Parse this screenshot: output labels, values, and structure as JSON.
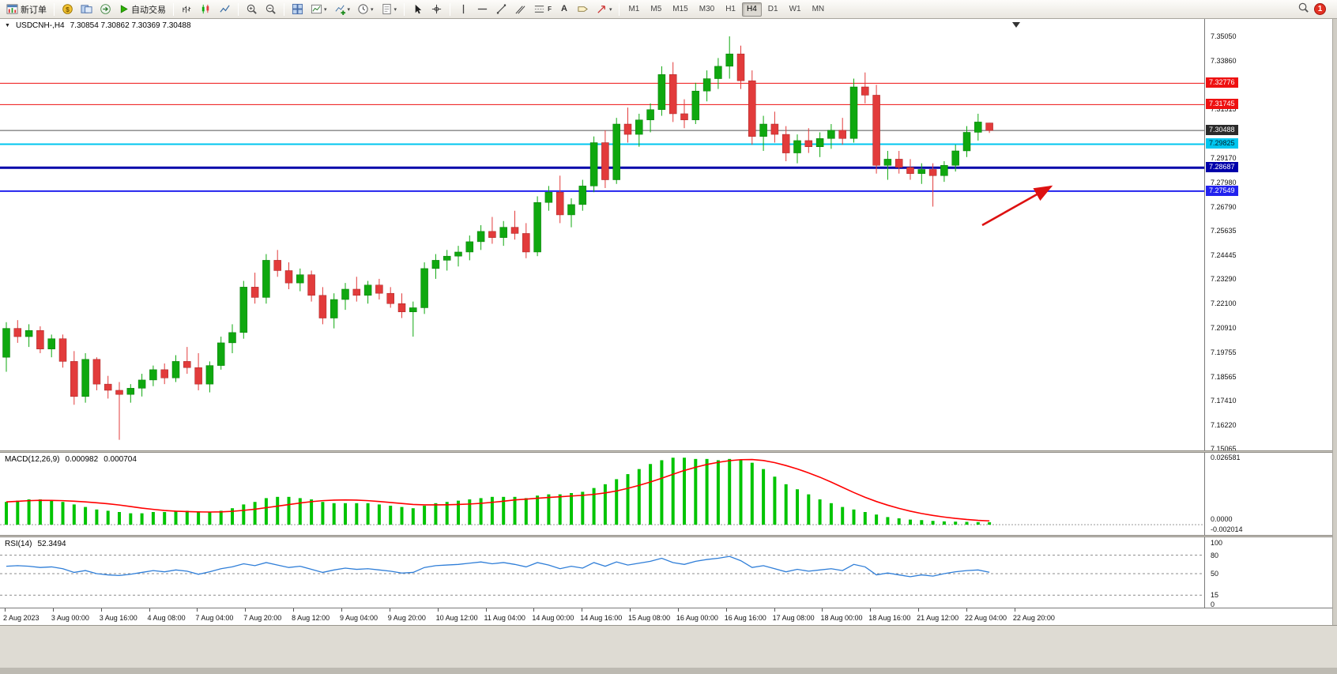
{
  "toolbar": {
    "new_order_label": "新订单",
    "auto_trading_label": "自动交易",
    "timeframes": [
      "M1",
      "M5",
      "M15",
      "M30",
      "H1",
      "H4",
      "D1",
      "W1",
      "MN"
    ],
    "active_timeframe": "H4",
    "notification_count": "1",
    "dropdown_glyph": "▾",
    "text_tool_glyph": "A",
    "fibo_glyph": "F"
  },
  "chart_header": {
    "menu_glyph": "▼",
    "symbol": "USDCNH-,H4",
    "ohlc": "7.30854 7.30862 7.30369 7.30488"
  },
  "macd_panel": {
    "label": "MACD(12,26,9)",
    "value_main": "0.000982",
    "value_signal": "0.000704",
    "axis": [
      "0.026581",
      "0.0000",
      "-0.002014"
    ]
  },
  "rsi_panel": {
    "label": "RSI(14)",
    "value": "52.3494",
    "axis": [
      "100",
      "80",
      "50",
      "15",
      "0"
    ]
  },
  "price_axis": {
    "ticks": [
      "7.35050",
      "7.33860",
      "7.31515",
      "7.29170",
      "7.27980",
      "7.26790",
      "7.25635",
      "7.24445",
      "7.23290",
      "7.22100",
      "7.20910",
      "7.19755",
      "7.18565",
      "7.17410",
      "7.16220",
      "7.15065"
    ],
    "badges": [
      {
        "text": "7.32776",
        "bg": "#ee1111",
        "fg": "#ffffff"
      },
      {
        "text": "7.31745",
        "bg": "#ee1111",
        "fg": "#ffffff"
      },
      {
        "text": "7.30488",
        "bg": "#2b2b2b",
        "fg": "#ffffff"
      },
      {
        "text": "7.29825",
        "bg": "#00c6ef",
        "fg": "#00222e"
      },
      {
        "text": "7.28687",
        "bg": "#0000aa",
        "fg": "#ffffff"
      },
      {
        "text": "7.27549",
        "bg": "#2222ee",
        "fg": "#ffffff"
      }
    ]
  },
  "time_axis": [
    "2 Aug 2023",
    "3 Aug 00:00",
    "3 Aug 16:00",
    "4 Aug 08:00",
    "7 Aug 04:00",
    "7 Aug 20:00",
    "8 Aug 12:00",
    "9 Aug 04:00",
    "9 Aug 20:00",
    "10 Aug 12:00",
    "11 Aug 04:00",
    "14 Aug 00:00",
    "14 Aug 16:00",
    "15 Aug 08:00",
    "16 Aug 00:00",
    "16 Aug 16:00",
    "17 Aug 08:00",
    "18 Aug 00:00",
    "18 Aug 16:00",
    "21 Aug 12:00",
    "22 Aug 04:00",
    "22 Aug 20:00"
  ],
  "chart_data": [
    {
      "type": "candlestick",
      "symbol": "USDCNH",
      "timeframe": "H4",
      "ylim": [
        7.15065,
        7.3505
      ],
      "up_color": "#0fa80f",
      "down_color": "#e23b3b",
      "candles": [
        [
          7.195,
          7.212,
          7.188,
          7.209
        ],
        [
          7.209,
          7.213,
          7.202,
          7.205
        ],
        [
          7.205,
          7.211,
          7.2,
          7.208
        ],
        [
          7.208,
          7.21,
          7.197,
          7.199
        ],
        [
          7.199,
          7.206,
          7.195,
          7.204
        ],
        [
          7.204,
          7.206,
          7.19,
          7.193
        ],
        [
          7.193,
          7.198,
          7.172,
          7.176
        ],
        [
          7.176,
          7.197,
          7.173,
          7.194
        ],
        [
          7.194,
          7.195,
          7.179,
          7.182
        ],
        [
          7.182,
          7.186,
          7.175,
          7.179
        ],
        [
          7.179,
          7.183,
          7.155,
          7.177
        ],
        [
          7.177,
          7.182,
          7.173,
          7.18
        ],
        [
          7.18,
          7.187,
          7.176,
          7.184
        ],
        [
          7.184,
          7.191,
          7.181,
          7.189
        ],
        [
          7.189,
          7.192,
          7.182,
          7.185
        ],
        [
          7.185,
          7.196,
          7.183,
          7.193
        ],
        [
          7.193,
          7.2,
          7.187,
          7.19
        ],
        [
          7.19,
          7.197,
          7.179,
          7.182
        ],
        [
          7.182,
          7.193,
          7.178,
          7.191
        ],
        [
          7.191,
          7.205,
          7.189,
          7.202
        ],
        [
          7.202,
          7.211,
          7.197,
          7.207
        ],
        [
          7.207,
          7.232,
          7.204,
          7.229
        ],
        [
          7.229,
          7.236,
          7.221,
          7.224
        ],
        [
          7.224,
          7.245,
          7.221,
          7.242
        ],
        [
          7.242,
          7.247,
          7.234,
          7.237
        ],
        [
          7.237,
          7.241,
          7.228,
          7.231
        ],
        [
          7.231,
          7.238,
          7.227,
          7.235
        ],
        [
          7.235,
          7.237,
          7.222,
          7.225
        ],
        [
          7.225,
          7.229,
          7.211,
          7.214
        ],
        [
          7.214,
          7.226,
          7.209,
          7.223
        ],
        [
          7.223,
          7.231,
          7.218,
          7.228
        ],
        [
          7.228,
          7.234,
          7.222,
          7.225
        ],
        [
          7.225,
          7.232,
          7.221,
          7.23
        ],
        [
          7.23,
          7.233,
          7.223,
          7.226
        ],
        [
          7.226,
          7.229,
          7.219,
          7.221
        ],
        [
          7.221,
          7.226,
          7.214,
          7.217
        ],
        [
          7.217,
          7.222,
          7.205,
          7.219
        ],
        [
          7.219,
          7.241,
          7.216,
          7.238
        ],
        [
          7.238,
          7.245,
          7.233,
          7.242
        ],
        [
          7.242,
          7.247,
          7.237,
          7.244
        ],
        [
          7.244,
          7.249,
          7.239,
          7.246
        ],
        [
          7.246,
          7.254,
          7.242,
          7.251
        ],
        [
          7.251,
          7.259,
          7.247,
          7.256
        ],
        [
          7.256,
          7.263,
          7.25,
          7.253
        ],
        [
          7.253,
          7.261,
          7.249,
          7.258
        ],
        [
          7.258,
          7.266,
          7.252,
          7.255
        ],
        [
          7.255,
          7.26,
          7.243,
          7.246
        ],
        [
          7.246,
          7.273,
          7.244,
          7.27
        ],
        [
          7.27,
          7.278,
          7.266,
          7.275
        ],
        [
          7.275,
          7.283,
          7.26,
          7.264
        ],
        [
          7.264,
          7.272,
          7.258,
          7.269
        ],
        [
          7.269,
          7.281,
          7.266,
          7.278
        ],
        [
          7.278,
          7.302,
          7.275,
          7.299
        ],
        [
          7.299,
          7.305,
          7.277,
          7.281
        ],
        [
          7.281,
          7.311,
          7.279,
          7.308
        ],
        [
          7.308,
          7.316,
          7.299,
          7.303
        ],
        [
          7.303,
          7.313,
          7.297,
          7.31
        ],
        [
          7.31,
          7.318,
          7.304,
          7.315
        ],
        [
          7.315,
          7.336,
          7.312,
          7.332
        ],
        [
          7.332,
          7.338,
          7.309,
          7.313
        ],
        [
          7.313,
          7.32,
          7.306,
          7.31
        ],
        [
          7.31,
          7.328,
          7.308,
          7.324
        ],
        [
          7.324,
          7.334,
          7.319,
          7.33
        ],
        [
          7.33,
          7.34,
          7.325,
          7.336
        ],
        [
          7.336,
          7.3505,
          7.33,
          7.342
        ],
        [
          7.342,
          7.346,
          7.325,
          7.329
        ],
        [
          7.329,
          7.334,
          7.298,
          7.302
        ],
        [
          7.302,
          7.312,
          7.295,
          7.308
        ],
        [
          7.308,
          7.314,
          7.299,
          7.303
        ],
        [
          7.303,
          7.307,
          7.29,
          7.294
        ],
        [
          7.294,
          7.303,
          7.289,
          7.3
        ],
        [
          7.3,
          7.306,
          7.294,
          7.297
        ],
        [
          7.297,
          7.304,
          7.292,
          7.301
        ],
        [
          7.301,
          7.308,
          7.296,
          7.305
        ],
        [
          7.305,
          7.311,
          7.298,
          7.301
        ],
        [
          7.301,
          7.33,
          7.299,
          7.326
        ],
        [
          7.326,
          7.333,
          7.318,
          7.322
        ],
        [
          7.322,
          7.327,
          7.284,
          7.288
        ],
        [
          7.288,
          7.295,
          7.281,
          7.291
        ],
        [
          7.291,
          7.295,
          7.284,
          7.287
        ],
        [
          7.287,
          7.291,
          7.281,
          7.284
        ],
        [
          7.284,
          7.289,
          7.279,
          7.286
        ],
        [
          7.286,
          7.289,
          7.268,
          7.283
        ],
        [
          7.283,
          7.29,
          7.28,
          7.288
        ],
        [
          7.288,
          7.298,
          7.285,
          7.295
        ],
        [
          7.295,
          7.307,
          7.292,
          7.304
        ],
        [
          7.304,
          7.313,
          7.3,
          7.309
        ],
        [
          7.30854,
          7.30862,
          7.30369,
          7.30488
        ]
      ],
      "levels": [
        {
          "price": 7.32776,
          "color": "#ee1111",
          "width": 1
        },
        {
          "price": 7.31745,
          "color": "#ee1111",
          "width": 1
        },
        {
          "price": 7.30488,
          "color": "#555555",
          "width": 1
        },
        {
          "price": 7.29825,
          "color": "#00c6ef",
          "width": 2
        },
        {
          "price": 7.28687,
          "color": "#0000aa",
          "width": 3
        },
        {
          "price": 7.27549,
          "color": "#2222ee",
          "width": 2
        }
      ],
      "annotation_arrow": {
        "from": [
          1243,
          261
        ],
        "to": [
          1330,
          212
        ],
        "color": "#dd1111"
      }
    },
    {
      "type": "bar",
      "name": "MACD(12,26,9)",
      "bar_color": "#00c400",
      "signal_color": "#ff0000",
      "signal": "sma9",
      "ylim": [
        -0.002014,
        0.026581
      ],
      "values": [
        0.009,
        0.0095,
        0.01,
        0.01,
        0.0095,
        0.009,
        0.008,
        0.007,
        0.006,
        0.0055,
        0.005,
        0.0045,
        0.0045,
        0.005,
        0.005,
        0.0055,
        0.0055,
        0.005,
        0.005,
        0.0055,
        0.0065,
        0.008,
        0.009,
        0.0105,
        0.011,
        0.011,
        0.0105,
        0.01,
        0.009,
        0.0085,
        0.0085,
        0.0085,
        0.0085,
        0.008,
        0.0075,
        0.007,
        0.0065,
        0.0075,
        0.0085,
        0.009,
        0.0095,
        0.01,
        0.0105,
        0.011,
        0.011,
        0.011,
        0.0105,
        0.0115,
        0.012,
        0.012,
        0.0125,
        0.013,
        0.0145,
        0.016,
        0.018,
        0.02,
        0.022,
        0.024,
        0.0255,
        0.0265,
        0.0265,
        0.026,
        0.026,
        0.0255,
        0.026,
        0.0255,
        0.0245,
        0.022,
        0.019,
        0.016,
        0.014,
        0.012,
        0.01,
        0.0085,
        0.007,
        0.006,
        0.005,
        0.004,
        0.003,
        0.0025,
        0.002,
        0.0018,
        0.0015,
        0.0013,
        0.0012,
        0.0011,
        0.001,
        0.000982
      ]
    },
    {
      "type": "line",
      "name": "RSI(14)",
      "line_color": "#2f7ed8",
      "level_lines": [
        80,
        50,
        15
      ],
      "ylim": [
        0,
        100
      ],
      "values": [
        62,
        63,
        62,
        60,
        61,
        58,
        52,
        55,
        50,
        48,
        47,
        49,
        52,
        55,
        53,
        56,
        54,
        49,
        53,
        58,
        61,
        66,
        63,
        68,
        64,
        60,
        62,
        57,
        52,
        56,
        59,
        57,
        58,
        56,
        54,
        51,
        52,
        60,
        63,
        64,
        65,
        67,
        69,
        66,
        68,
        65,
        61,
        68,
        64,
        58,
        62,
        59,
        68,
        62,
        69,
        64,
        67,
        70,
        75,
        68,
        65,
        70,
        73,
        75,
        78,
        71,
        60,
        63,
        58,
        53,
        57,
        54,
        56,
        58,
        55,
        65,
        61,
        48,
        51,
        48,
        45,
        48,
        46,
        50,
        53,
        55,
        56,
        52.3
      ]
    }
  ]
}
